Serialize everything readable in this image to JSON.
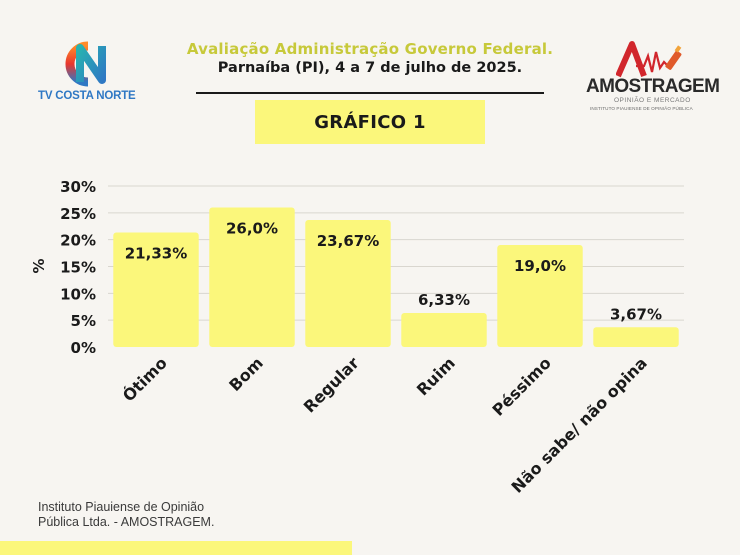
{
  "brand": {
    "left_logo_text": "TV COSTA NORTE",
    "right_logo_name": "AMOSTRAGEM",
    "right_logo_tagline": "OPINIÃO E MERCADO",
    "right_logo_subtitle": "INSTITUTO PIAUIENSE DE OPINIÃO PÚBLICA"
  },
  "header": {
    "title": "Avaliação Administração Governo Federal.",
    "subtitle": "Parnaíba (PI), 4 a 7 de julho de 2025."
  },
  "badge": {
    "label": "GRÁFICO 1"
  },
  "chart_data": {
    "type": "bar",
    "categories": [
      "Ótimo",
      "Bom",
      "Regular",
      "Ruim",
      "Péssimo",
      "Não sabe/ não opina"
    ],
    "values": [
      21.33,
      26.0,
      23.67,
      6.33,
      19.0,
      3.67
    ],
    "data_labels": [
      "21,33%",
      "26,0%",
      "23,67%",
      "6,33%",
      "19,0%",
      "3,67%"
    ],
    "ylabel": "%",
    "ylim": [
      0,
      30
    ],
    "yticks": [
      0,
      5,
      10,
      15,
      20,
      25,
      30
    ],
    "ytick_labels": [
      "0%",
      "5%",
      "10%",
      "15%",
      "20%",
      "25%",
      "30%"
    ],
    "grid": true,
    "bar_color": "#fbf77b"
  },
  "footer": {
    "line1": "Instituto Piauiense de Opinião",
    "line2": "Pública Ltda. - AMOSTRAGEM."
  }
}
